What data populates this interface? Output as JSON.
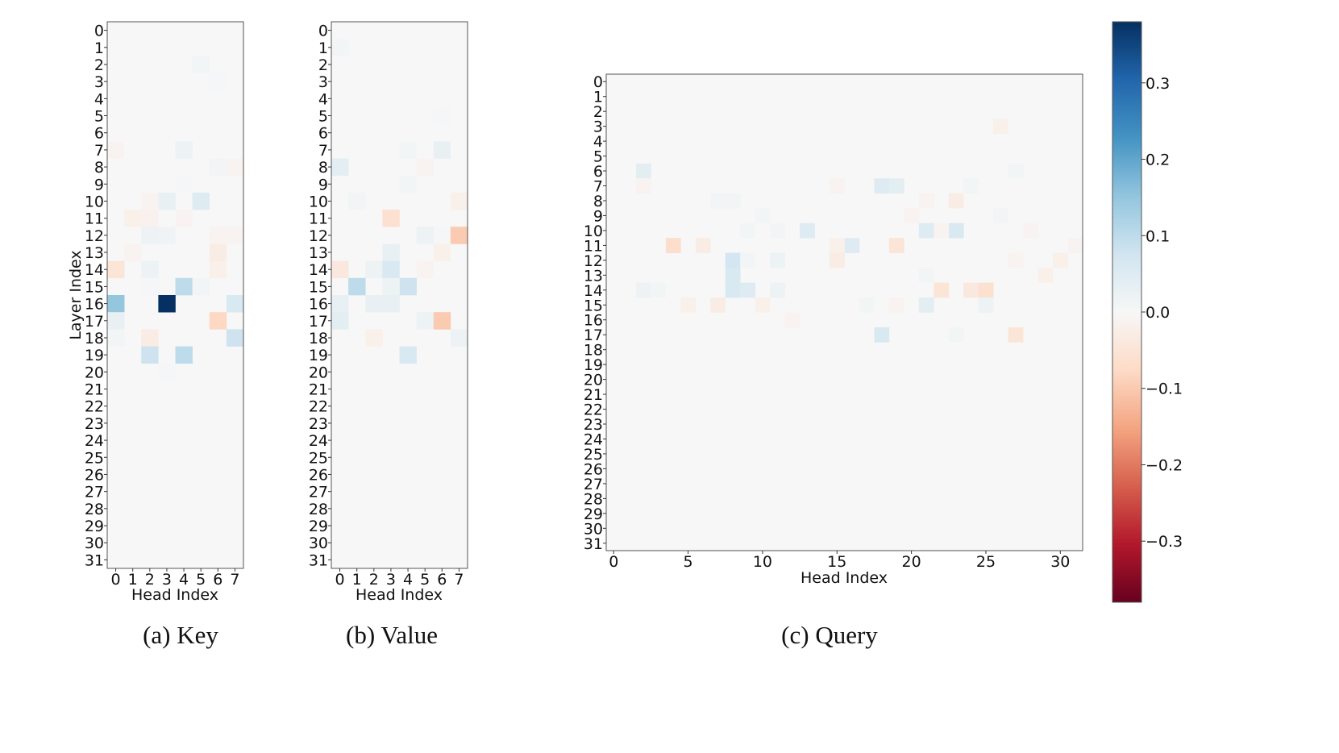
{
  "chart_data": [
    {
      "type": "heatmap",
      "caption": "(a) Key",
      "xlabel": "Head Index",
      "ylabel": "Layer Index",
      "x_ticks": [
        0,
        1,
        2,
        3,
        4,
        5,
        6,
        7
      ],
      "y_ticks": [
        0,
        1,
        2,
        3,
        4,
        5,
        6,
        7,
        8,
        9,
        10,
        11,
        12,
        13,
        14,
        15,
        16,
        17,
        18,
        19,
        20,
        21,
        22,
        23,
        24,
        25,
        26,
        27,
        28,
        29,
        30,
        31
      ],
      "n_rows": 32,
      "n_cols": 8,
      "cells": [
        [
          2,
          5,
          0.01
        ],
        [
          3,
          6,
          0.005
        ],
        [
          7,
          0,
          -0.01
        ],
        [
          7,
          4,
          0.02
        ],
        [
          8,
          6,
          0.01
        ],
        [
          8,
          7,
          -0.01
        ],
        [
          9,
          4,
          0.005
        ],
        [
          10,
          2,
          -0.01
        ],
        [
          10,
          3,
          0.03
        ],
        [
          10,
          5,
          0.05
        ],
        [
          11,
          1,
          -0.02
        ],
        [
          11,
          2,
          -0.015
        ],
        [
          11,
          4,
          -0.01
        ],
        [
          12,
          2,
          0.02
        ],
        [
          12,
          3,
          0.015
        ],
        [
          12,
          6,
          -0.01
        ],
        [
          12,
          7,
          -0.01
        ],
        [
          13,
          1,
          -0.01
        ],
        [
          13,
          6,
          -0.03
        ],
        [
          14,
          0,
          -0.05
        ],
        [
          14,
          2,
          0.02
        ],
        [
          14,
          6,
          -0.02
        ],
        [
          15,
          2,
          0.005
        ],
        [
          15,
          4,
          0.1
        ],
        [
          15,
          5,
          0.01
        ],
        [
          16,
          0,
          0.15
        ],
        [
          16,
          3,
          0.38
        ],
        [
          16,
          7,
          0.06
        ],
        [
          17,
          0,
          0.03
        ],
        [
          17,
          6,
          -0.08
        ],
        [
          18,
          0,
          0.01
        ],
        [
          18,
          2,
          -0.03
        ],
        [
          18,
          7,
          0.08
        ],
        [
          19,
          2,
          0.08
        ],
        [
          19,
          4,
          0.1
        ],
        [
          20,
          3,
          0.005
        ]
      ]
    },
    {
      "type": "heatmap",
      "caption": "(b) Value",
      "xlabel": "Head Index",
      "ylabel": "",
      "x_ticks": [
        0,
        1,
        2,
        3,
        4,
        5,
        6,
        7
      ],
      "y_ticks": [
        0,
        1,
        2,
        3,
        4,
        5,
        6,
        7,
        8,
        9,
        10,
        11,
        12,
        13,
        14,
        15,
        16,
        17,
        18,
        19,
        20,
        21,
        22,
        23,
        24,
        25,
        26,
        27,
        28,
        29,
        30,
        31
      ],
      "n_rows": 32,
      "n_cols": 8,
      "cells": [
        [
          1,
          0,
          0.01
        ],
        [
          5,
          6,
          0.005
        ],
        [
          7,
          4,
          0.01
        ],
        [
          7,
          6,
          0.03
        ],
        [
          8,
          0,
          0.04
        ],
        [
          8,
          5,
          -0.01
        ],
        [
          9,
          4,
          0.01
        ],
        [
          10,
          1,
          0.01
        ],
        [
          10,
          7,
          -0.02
        ],
        [
          11,
          3,
          -0.06
        ],
        [
          12,
          6,
          0.005
        ],
        [
          12,
          7,
          -0.1
        ],
        [
          12,
          5,
          0.02
        ],
        [
          13,
          3,
          0.03
        ],
        [
          13,
          6,
          -0.02
        ],
        [
          14,
          0,
          -0.04
        ],
        [
          14,
          2,
          0.02
        ],
        [
          14,
          3,
          0.06
        ],
        [
          14,
          5,
          -0.01
        ],
        [
          15,
          1,
          0.1
        ],
        [
          15,
          4,
          0.08
        ],
        [
          15,
          3,
          0.02
        ],
        [
          16,
          0,
          0.03
        ],
        [
          16,
          2,
          0.03
        ],
        [
          16,
          3,
          0.03
        ],
        [
          17,
          0,
          0.04
        ],
        [
          17,
          5,
          0.02
        ],
        [
          17,
          6,
          -0.1
        ],
        [
          18,
          2,
          -0.02
        ],
        [
          18,
          7,
          0.02
        ],
        [
          19,
          4,
          0.06
        ]
      ]
    },
    {
      "type": "heatmap",
      "caption": "(c) Query",
      "xlabel": "Head Index",
      "ylabel": "",
      "x_ticks": [
        0,
        5,
        10,
        15,
        20,
        25,
        30
      ],
      "y_ticks": [
        0,
        1,
        2,
        3,
        4,
        5,
        6,
        7,
        8,
        9,
        10,
        11,
        12,
        13,
        14,
        15,
        16,
        17,
        18,
        19,
        20,
        21,
        22,
        23,
        24,
        25,
        26,
        27,
        28,
        29,
        30,
        31
      ],
      "n_rows": 32,
      "n_cols": 32,
      "cells": [
        [
          3,
          26,
          -0.02
        ],
        [
          6,
          2,
          0.04
        ],
        [
          6,
          27,
          0.01
        ],
        [
          7,
          2,
          -0.01
        ],
        [
          7,
          15,
          -0.01
        ],
        [
          7,
          18,
          0.05
        ],
        [
          7,
          19,
          0.04
        ],
        [
          7,
          24,
          0.01
        ],
        [
          8,
          7,
          0.01
        ],
        [
          8,
          8,
          0.01
        ],
        [
          8,
          21,
          -0.01
        ],
        [
          8,
          23,
          -0.03
        ],
        [
          9,
          10,
          0.01
        ],
        [
          9,
          20,
          -0.01
        ],
        [
          9,
          26,
          0.01
        ],
        [
          10,
          9,
          0.01
        ],
        [
          10,
          11,
          0.01
        ],
        [
          10,
          13,
          0.05
        ],
        [
          10,
          21,
          0.05
        ],
        [
          10,
          23,
          0.06
        ],
        [
          10,
          22,
          -0.01
        ],
        [
          10,
          28,
          -0.01
        ],
        [
          11,
          4,
          -0.07
        ],
        [
          11,
          6,
          -0.03
        ],
        [
          11,
          16,
          0.05
        ],
        [
          11,
          19,
          -0.05
        ],
        [
          11,
          31,
          -0.01
        ],
        [
          11,
          15,
          -0.02
        ],
        [
          12,
          8,
          0.07
        ],
        [
          12,
          9,
          0.01
        ],
        [
          12,
          15,
          -0.03
        ],
        [
          12,
          27,
          -0.01
        ],
        [
          12,
          30,
          -0.02
        ],
        [
          12,
          11,
          0.02
        ],
        [
          13,
          8,
          0.06
        ],
        [
          13,
          21,
          0.01
        ],
        [
          13,
          29,
          -0.02
        ],
        [
          14,
          2,
          0.02
        ],
        [
          14,
          3,
          0.01
        ],
        [
          14,
          8,
          0.06
        ],
        [
          14,
          9,
          0.05
        ],
        [
          14,
          11,
          0.02
        ],
        [
          14,
          22,
          -0.05
        ],
        [
          14,
          24,
          -0.04
        ],
        [
          14,
          25,
          -0.06
        ],
        [
          15,
          5,
          -0.02
        ],
        [
          15,
          7,
          -0.03
        ],
        [
          15,
          10,
          -0.02
        ],
        [
          15,
          17,
          0.01
        ],
        [
          15,
          21,
          0.04
        ],
        [
          15,
          25,
          0.02
        ],
        [
          15,
          19,
          -0.01
        ],
        [
          16,
          12,
          -0.01
        ],
        [
          17,
          18,
          0.06
        ],
        [
          17,
          27,
          -0.05
        ],
        [
          17,
          23,
          0.01
        ]
      ]
    }
  ],
  "colorbar": {
    "min": -0.38,
    "max": 0.38,
    "ticks": [
      0.3,
      0.2,
      0.1,
      0.0,
      -0.1,
      -0.2,
      -0.3
    ],
    "tick_labels": [
      "0.3",
      "0.2",
      "0.1",
      "0.0",
      "−0.1",
      "−0.2",
      "−0.3"
    ],
    "colormap": "RdBu",
    "colors": [
      "#67001f",
      "#b2182b",
      "#d6604d",
      "#f4a582",
      "#fddbc7",
      "#f7f7f7",
      "#d1e5f0",
      "#92c5de",
      "#4393c3",
      "#2166ac",
      "#053061"
    ]
  }
}
